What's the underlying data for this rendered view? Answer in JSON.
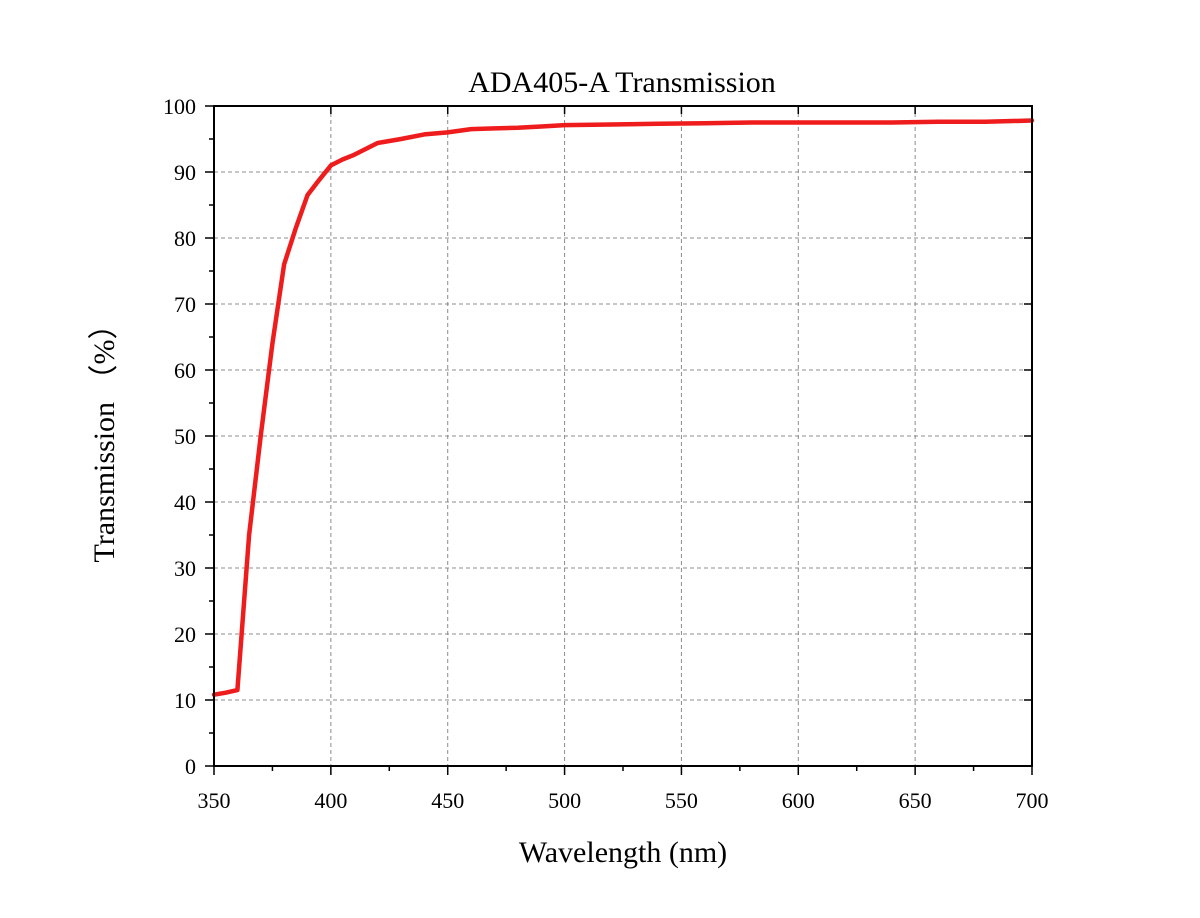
{
  "chart_data": {
    "type": "line",
    "title": "ADA405-A Transmission",
    "xlabel": "Wavelength (nm)",
    "ylabel": "Transmission （%）",
    "xlim": [
      350,
      700
    ],
    "ylim": [
      0,
      100
    ],
    "xticks": [
      350,
      400,
      450,
      500,
      550,
      600,
      650,
      700
    ],
    "yticks": [
      0,
      10,
      20,
      30,
      40,
      50,
      60,
      70,
      80,
      90,
      100
    ],
    "grid": true,
    "legend": "none",
    "colors": {
      "series": "#ee1c1c"
    },
    "series": [
      {
        "x": [
          350,
          355,
          360,
          365,
          370,
          375,
          380,
          385,
          390,
          395,
          400,
          405,
          410,
          420,
          430,
          440,
          450,
          460,
          470,
          480,
          490,
          500,
          520,
          540,
          560,
          580,
          600,
          620,
          640,
          660,
          680,
          700
        ],
        "y": [
          10.8,
          11.1,
          11.5,
          35,
          50,
          64,
          76,
          81.5,
          86.5,
          88.8,
          91,
          91.9,
          92.6,
          94.4,
          95,
          95.7,
          96,
          96.5,
          96.6,
          96.7,
          96.9,
          97.1,
          97.2,
          97.3,
          97.4,
          97.5,
          97.5,
          97.5,
          97.5,
          97.6,
          97.6,
          97.8
        ]
      }
    ]
  }
}
